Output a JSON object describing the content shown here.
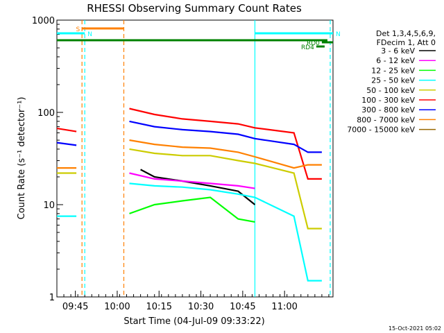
{
  "chart_data": {
    "type": "line",
    "title": "RHESSI Observing Summary Count Rates",
    "xlabel": "Start Time (04-Jul-09 09:33:22)",
    "ylabel": "Count Rate (s⁻¹ detector⁻¹)",
    "yscale": "log",
    "ylim": [
      1,
      1000
    ],
    "xlim_minutes": [
      5,
      104
    ],
    "x_tick_labels": [
      "09:45",
      "10:00",
      "10:15",
      "10:30",
      "10:45",
      "11:00"
    ],
    "x_tick_minutes": [
      11.63,
      26.63,
      41.63,
      56.63,
      71.63,
      86.63
    ],
    "y_tick_labels": [
      "1",
      "10",
      "100",
      "1000"
    ],
    "y_tick_values": [
      1,
      10,
      100,
      1000
    ],
    "legend_header": [
      "Det 1,3,4,5,6,9,",
      "FDecim 1, Att 0"
    ],
    "legend_position": "right",
    "footer_date": "15-Oct-2021 05:02",
    "series": [
      {
        "name": "3 - 6 keV",
        "color": "#000000",
        "x": [
          5,
          12,
          14,
          29,
          35,
          40,
          50,
          60,
          70,
          76,
          90,
          95,
          100
        ],
        "y": [
          null,
          null,
          null,
          null,
          24,
          20,
          18,
          16,
          14,
          10,
          null,
          null,
          null
        ]
      },
      {
        "name": "6 - 12 keV",
        "color": "#ff00ff",
        "x": [
          5,
          12,
          14,
          29,
          31,
          40,
          50,
          60,
          70,
          76,
          90,
          95,
          100
        ],
        "y": [
          null,
          null,
          null,
          null,
          22,
          19,
          18,
          17,
          16,
          15,
          null,
          null,
          null
        ]
      },
      {
        "name": "12 - 25 keV",
        "color": "#00ff00",
        "x": [
          5,
          12,
          14,
          29,
          31,
          40,
          50,
          60,
          70,
          76,
          90,
          95,
          100
        ],
        "y": [
          null,
          null,
          null,
          null,
          8,
          10,
          11,
          12,
          7,
          6.5,
          null,
          null,
          null
        ]
      },
      {
        "name": "25 - 50 keV",
        "color": "#00ffff",
        "x": [
          5,
          12,
          14,
          29,
          31,
          40,
          50,
          60,
          70,
          76,
          90,
          95,
          100
        ],
        "y": [
          7.5,
          7.5,
          null,
          null,
          17,
          16,
          15.5,
          14.5,
          13,
          12,
          7.5,
          1.5,
          1.5
        ]
      },
      {
        "name": "50 - 100 keV",
        "color": "#cccc00",
        "x": [
          5,
          12,
          14,
          29,
          31,
          40,
          50,
          60,
          70,
          76,
          90,
          95,
          100
        ],
        "y": [
          22,
          22,
          null,
          null,
          40,
          36,
          34,
          34,
          30,
          28,
          22,
          5.5,
          5.5
        ]
      },
      {
        "name": "100 - 300 keV",
        "color": "#ff0000",
        "x": [
          5,
          12,
          14,
          29,
          31,
          40,
          50,
          60,
          70,
          76,
          90,
          95,
          100
        ],
        "y": [
          67,
          62,
          null,
          null,
          110,
          95,
          85,
          80,
          75,
          68,
          60,
          19,
          19
        ]
      },
      {
        "name": "300 - 800 keV",
        "color": "#0000ff",
        "x": [
          5,
          12,
          14,
          29,
          31,
          40,
          50,
          60,
          70,
          76,
          90,
          95,
          100
        ],
        "y": [
          47,
          44,
          null,
          null,
          80,
          70,
          65,
          62,
          58,
          52,
          45,
          37,
          37
        ]
      },
      {
        "name": "800 - 7000 keV",
        "color": "#ff8000",
        "x": [
          5,
          12,
          14,
          29,
          31,
          40,
          50,
          60,
          70,
          76,
          90,
          95,
          100
        ],
        "y": [
          25,
          25,
          null,
          null,
          50,
          45,
          42,
          41,
          37,
          33,
          25,
          27,
          27
        ]
      },
      {
        "name": "7000 - 15000 keV",
        "color": "#996600",
        "x": [
          5,
          100
        ],
        "y": [
          null,
          null
        ]
      }
    ],
    "flag_bars": [
      {
        "label": "S",
        "color": "#ff8000",
        "x_start": 14,
        "x_end": 29
      },
      {
        "label": "N",
        "color": "#00ffff",
        "x_start": 5,
        "x_end": 15
      },
      {
        "label": "N",
        "color": "#00ffff",
        "x_start": 76,
        "x_end": 104
      },
      {
        "label": "",
        "color": "#008000",
        "x_start": 5,
        "x_end": 102
      },
      {
        "label": "RD0",
        "color": "#008000",
        "x_start": 100,
        "x_end": 104
      },
      {
        "label": "RD4",
        "color": "#008000",
        "x_start": 98,
        "x_end": 101
      }
    ],
    "vertical_markers": [
      {
        "color": "#ff8000",
        "style": "dashed",
        "x": 14
      },
      {
        "color": "#00ffff",
        "style": "dashed",
        "x": 15
      },
      {
        "color": "#ff8000",
        "style": "dashed",
        "x": 29
      },
      {
        "color": "#00ffff",
        "style": "solid",
        "x": 76
      },
      {
        "color": "#00ffff",
        "style": "dashed",
        "x": 103
      }
    ]
  }
}
